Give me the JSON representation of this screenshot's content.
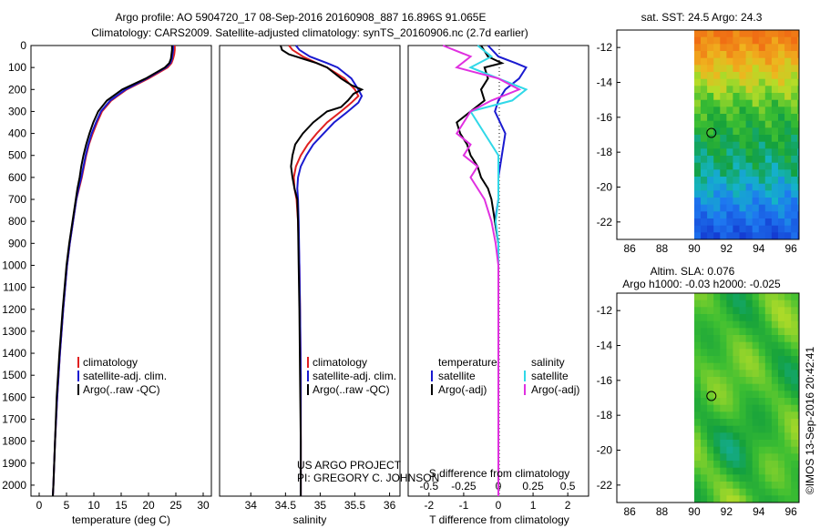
{
  "header": {
    "title_line1": "Argo profile: AO 5904720_17 08-Sep-2016 20160908_887 16.896S 91.065E",
    "title_line2": "Climatology: CARS2009. Satellite-adjusted climatology: synTS_20160906.nc (2.7d earlier)"
  },
  "colors": {
    "climatology": "#e02020",
    "satellite": "#1a1ad0",
    "argo": "#000000",
    "satellite_salinity": "#30d8e8",
    "argo_salinity": "#e030e0"
  },
  "depth_axis": {
    "range": [
      0,
      2050
    ],
    "ticks": [
      "0",
      "100",
      "200",
      "300",
      "400",
      "500",
      "600",
      "700",
      "800",
      "900",
      "1000",
      "1100",
      "1200",
      "1300",
      "1400",
      "1500",
      "1600",
      "1700",
      "1800",
      "1900",
      "2000"
    ]
  },
  "chart_data": [
    {
      "type": "line",
      "id": "temperature",
      "xlabel": "temperature (deg C)",
      "xlim": [
        -1.5,
        31.5
      ],
      "xticks": [
        "0",
        "5",
        "10",
        "15",
        "20",
        "25",
        "30"
      ],
      "ylim": [
        0,
        2050
      ],
      "legend": [
        "climatology",
        "satellite-adj. clim.",
        "Argo(..raw -QC)"
      ],
      "series": [
        {
          "name": "climatology",
          "color": "#e02020",
          "depth": [
            0,
            20,
            40,
            60,
            80,
            100,
            150,
            200,
            250,
            300,
            350,
            400,
            450,
            500,
            550,
            600,
            650,
            700,
            800,
            900,
            1000,
            1200,
            1400,
            1600,
            1800,
            2000,
            2050
          ],
          "values": [
            24.8,
            24.8,
            24.7,
            24.5,
            24.2,
            23.5,
            20,
            16,
            13.2,
            11.5,
            10.6,
            9.8,
            9.1,
            8.6,
            8.2,
            7.8,
            7.3,
            6.8,
            6.2,
            5.6,
            5.1,
            4.4,
            3.8,
            3.3,
            2.9,
            2.6,
            2.5
          ]
        },
        {
          "name": "satellite-adj. clim.",
          "color": "#1a1ad0",
          "depth": [
            0,
            20,
            40,
            60,
            80,
            100,
            150,
            200,
            250,
            300,
            350,
            400,
            450,
            500,
            550,
            600,
            650,
            700,
            800,
            900,
            1000,
            1200,
            1400,
            1600,
            1800,
            2000,
            2050
          ],
          "values": [
            24.5,
            24.5,
            24.4,
            24.3,
            24,
            23.2,
            19.7,
            15.8,
            13,
            11.3,
            10.4,
            9.6,
            9,
            8.5,
            8.1,
            7.7,
            7.2,
            6.8,
            6.2,
            5.6,
            5.1,
            4.4,
            3.8,
            3.3,
            2.9,
            2.6,
            2.5
          ]
        },
        {
          "name": "Argo(..raw -QC)",
          "color": "#000000",
          "depth": [
            0,
            20,
            40,
            60,
            80,
            100,
            150,
            200,
            250,
            300,
            350,
            400,
            450,
            500,
            550,
            600,
            650,
            700,
            800,
            900,
            1000,
            1200,
            1400,
            1600,
            1800,
            2000,
            2050
          ],
          "values": [
            24.3,
            24.3,
            24.2,
            24.1,
            23.8,
            23,
            19.5,
            15.2,
            12.4,
            10.8,
            9.9,
            9.2,
            8.6,
            8.1,
            7.7,
            7.4,
            7,
            6.7,
            6.1,
            5.5,
            5,
            4.3,
            3.7,
            3.2,
            2.9,
            2.6,
            2.5
          ]
        }
      ]
    },
    {
      "type": "line",
      "id": "salinity",
      "xlabel": "salinity",
      "xlim": [
        33.55,
        36.15
      ],
      "xticks": [
        "34",
        "34.5",
        "35",
        "35.5",
        "36"
      ],
      "ylim": [
        0,
        2050
      ],
      "legend": [
        "climatology",
        "satellite-adj. clim.",
        "Argo(..raw -QC)"
      ],
      "annotation": [
        "US ARGO PROJECT",
        "PI: GREGORY C. JOHNSON"
      ],
      "series": [
        {
          "name": "climatology",
          "color": "#e02020",
          "depth": [
            0,
            20,
            50,
            80,
            100,
            150,
            200,
            230,
            260,
            300,
            350,
            400,
            450,
            500,
            550,
            600,
            650,
            700,
            800,
            1000,
            1200,
            1500,
            1800,
            2050
          ],
          "values": [
            34.55,
            34.6,
            34.75,
            34.95,
            35.1,
            35.35,
            35.5,
            35.55,
            35.45,
            35.3,
            35.1,
            34.95,
            34.82,
            34.72,
            34.65,
            34.62,
            34.63,
            34.66,
            34.68,
            34.7,
            34.71,
            34.72,
            34.72,
            34.72
          ]
        },
        {
          "name": "satellite-adj. clim.",
          "color": "#1a1ad0",
          "depth": [
            0,
            20,
            50,
            80,
            100,
            150,
            200,
            230,
            260,
            300,
            350,
            400,
            450,
            500,
            550,
            600,
            650,
            700,
            800,
            1000,
            1200,
            1500,
            1800,
            2050
          ],
          "values": [
            34.65,
            34.7,
            34.85,
            35.1,
            35.25,
            35.45,
            35.55,
            35.6,
            35.55,
            35.4,
            35.2,
            35.05,
            34.9,
            34.8,
            34.72,
            34.68,
            34.67,
            34.68,
            34.69,
            34.7,
            34.71,
            34.72,
            34.72,
            34.72
          ]
        },
        {
          "name": "Argo(..raw -QC)",
          "color": "#000000",
          "depth": [
            0,
            20,
            40,
            60,
            80,
            100,
            150,
            180,
            200,
            220,
            250,
            280,
            300,
            350,
            400,
            450,
            500,
            550,
            600,
            650,
            700,
            800,
            1000,
            1200,
            1500,
            1800,
            2050
          ],
          "values": [
            34.43,
            34.45,
            34.55,
            34.75,
            34.95,
            35.1,
            35.3,
            35.45,
            35.6,
            35.48,
            35.4,
            35.3,
            35.1,
            34.9,
            34.75,
            34.64,
            34.6,
            34.58,
            34.6,
            34.63,
            34.67,
            34.68,
            34.69,
            34.7,
            34.71,
            34.72,
            34.72
          ]
        }
      ]
    },
    {
      "type": "line",
      "id": "difference",
      "xlabel_top": "S difference from climatology",
      "xlabel": "T difference from climatology",
      "xlim": [
        -2.6,
        2.6
      ],
      "xticks_T": [
        "-2",
        "-1",
        "0",
        "1",
        "2"
      ],
      "xticks_S": [
        "-0.5",
        "-0.25",
        "0",
        "0.25",
        "0.5"
      ],
      "ylim": [
        0,
        2050
      ],
      "legend_headers": [
        "temperature",
        "salinity"
      ],
      "legend": [
        "satellite",
        "Argo(-adj)",
        "satellite",
        "Argo(-adj)"
      ],
      "series": [
        {
          "name": "temperature satellite",
          "color": "#1a1ad0",
          "depth": [
            0,
            50,
            80,
            100,
            150,
            200,
            250,
            300,
            400,
            500,
            600,
            700,
            800,
            900,
            1000,
            1200,
            1500,
            1800,
            2050
          ],
          "values": [
            -0.3,
            0,
            0.5,
            0.8,
            0.6,
            0.2,
            0,
            -0.1,
            0.2,
            0.1,
            0,
            0,
            -0.1,
            0,
            0,
            0,
            0,
            0,
            0
          ]
        },
        {
          "name": "temperature Argo(-adj)",
          "color": "#000000",
          "depth": [
            0,
            50,
            80,
            100,
            150,
            200,
            250,
            300,
            350,
            400,
            450,
            500,
            550,
            600,
            650,
            700,
            800,
            900,
            1000,
            1200,
            1500,
            1800,
            2050
          ],
          "values": [
            -0.5,
            -0.3,
            0.1,
            -0.4,
            -0.3,
            -0.5,
            -0.4,
            -0.8,
            -1.2,
            -1.1,
            -0.9,
            -0.8,
            -0.6,
            -0.5,
            -0.3,
            -0.2,
            -0.1,
            0,
            0,
            0,
            0,
            0,
            0
          ]
        },
        {
          "name": "salinity satellite",
          "color": "#30d8e8",
          "depth": [
            0,
            50,
            100,
            150,
            200,
            250,
            300,
            400,
            500,
            600,
            700,
            800,
            900,
            1000,
            1200,
            1500,
            1800,
            2050
          ],
          "values": [
            -0.15,
            -0.05,
            -0.2,
            0,
            0.2,
            0.1,
            -0.2,
            -0.1,
            0,
            0,
            0,
            -0.02,
            0,
            0,
            0,
            0,
            0,
            0
          ]
        },
        {
          "name": "salinity Argo(-adj)",
          "color": "#e030e0",
          "depth": [
            0,
            50,
            100,
            150,
            200,
            250,
            300,
            350,
            400,
            450,
            500,
            550,
            600,
            700,
            800,
            900,
            1000,
            1200,
            1500,
            1800,
            2050
          ],
          "values": [
            -0.4,
            -0.2,
            -0.3,
            0,
            0.15,
            -0.05,
            -0.2,
            -0.25,
            -0.3,
            -0.2,
            -0.25,
            -0.15,
            -0.2,
            -0.1,
            -0.05,
            -0.02,
            0,
            0,
            0,
            0,
            0
          ]
        }
      ]
    },
    {
      "type": "heatmap",
      "id": "sst_map",
      "title": "sat. SST: 24.5 Argo: 24.3",
      "xlim": [
        85.2,
        96.5
      ],
      "ylim": [
        -23,
        -11
      ],
      "xticks": [
        "86",
        "88",
        "90",
        "92",
        "94",
        "96"
      ],
      "yticks": [
        "-12",
        "-14",
        "-16",
        "-18",
        "-20",
        "-22"
      ],
      "data_lon_start": 90,
      "float_position": {
        "lon": 91.065,
        "lat": -16.896
      }
    },
    {
      "type": "heatmap",
      "id": "sla_map",
      "title": "Altim. SLA: 0.076",
      "subtitle": "Argo h1000: -0.03 h2000: -0.025",
      "xlim": [
        85.2,
        96.5
      ],
      "ylim": [
        -23,
        -11
      ],
      "xticks": [
        "86",
        "88",
        "90",
        "92",
        "94",
        "96"
      ],
      "yticks": [
        "-12",
        "-14",
        "-16",
        "-18",
        "-20",
        "-22"
      ],
      "data_lon_start": 90,
      "float_position": {
        "lon": 91.065,
        "lat": -16.896
      }
    }
  ],
  "footer": {
    "stamp": "©IMOS 13-Sep-2016 20:42:41"
  }
}
